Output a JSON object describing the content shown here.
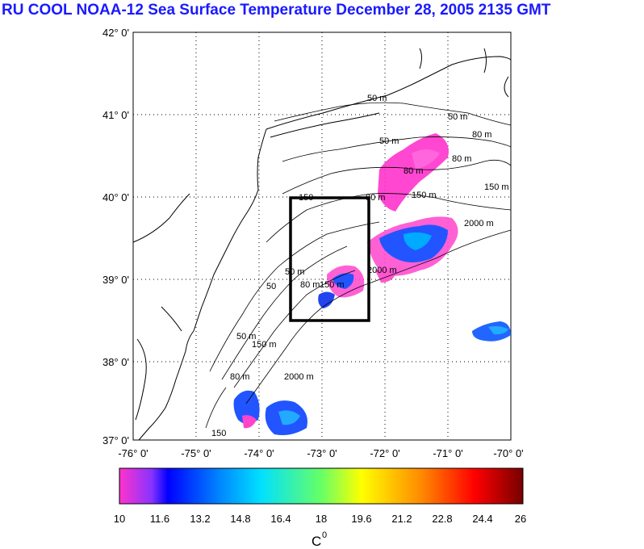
{
  "title": "RU COOL  NOAA-12 Sea Surface Temperature December 28, 2005 2135 GMT",
  "map": {
    "lat_labels": [
      "42° 0'",
      "41° 0'",
      "40° 0'",
      "39° 0'",
      "38° 0'",
      "37° 0'"
    ],
    "lon_labels": [
      "-76° 0'",
      "-75° 0'",
      "-74° 0'",
      "-73° 0'",
      "-72° 0'",
      "-71° 0'",
      "-70° 0'"
    ],
    "lat_range": [
      37,
      42
    ],
    "lon_range": [
      -76,
      -70
    ],
    "contour_labels": [
      "50 m",
      "50 m",
      "50 m",
      "80 m",
      "80 m",
      "80 m",
      "150 m",
      "150 m",
      "2000 m",
      "2000 m",
      "150",
      "50 m",
      "50",
      "80 m",
      "150 m",
      "50 m",
      "150 m",
      "80 m",
      "2000 m",
      "150",
      "80 m"
    ],
    "study_box": {
      "lon": [
        -73.5,
        -72.5
      ],
      "lat": [
        38.5,
        40.0
      ]
    }
  },
  "colorbar": {
    "ticks": [
      "10",
      "11.6",
      "13.2",
      "14.8",
      "16.4",
      "18",
      "19.6",
      "21.2",
      "22.8",
      "24.4",
      "26"
    ],
    "unit_label": "C",
    "unit_superscript": "0",
    "range": [
      10,
      26
    ]
  }
}
